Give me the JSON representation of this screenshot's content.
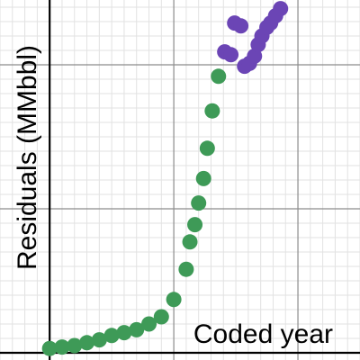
{
  "chart_data": {
    "type": "scatter",
    "title": "",
    "xlabel": "Coded year",
    "ylabel": "Residuals (MMbbl)",
    "grid": true,
    "legend": "none",
    "xlim": [
      -0.4,
      2.5
    ],
    "ylim": [
      -0.05,
      2.45
    ],
    "series": [
      {
        "color": "#3e9a57",
        "points": [
          {
            "x": 0.0,
            "y": 0.03
          },
          {
            "x": 0.1,
            "y": 0.04
          },
          {
            "x": 0.2,
            "y": 0.05
          },
          {
            "x": 0.3,
            "y": 0.07
          },
          {
            "x": 0.4,
            "y": 0.09
          },
          {
            "x": 0.5,
            "y": 0.12
          },
          {
            "x": 0.6,
            "y": 0.14
          },
          {
            "x": 0.7,
            "y": 0.16
          },
          {
            "x": 0.8,
            "y": 0.2
          },
          {
            "x": 0.9,
            "y": 0.25
          },
          {
            "x": 1.0,
            "y": 0.37
          },
          {
            "x": 1.1,
            "y": 0.58
          },
          {
            "x": 1.13,
            "y": 0.77
          },
          {
            "x": 1.17,
            "y": 0.89
          },
          {
            "x": 1.2,
            "y": 1.04
          },
          {
            "x": 1.24,
            "y": 1.21
          },
          {
            "x": 1.27,
            "y": 1.42
          },
          {
            "x": 1.31,
            "y": 1.68
          },
          {
            "x": 1.36,
            "y": 1.92
          }
        ]
      },
      {
        "color": "#6b45b5",
        "points": [
          {
            "x": 1.41,
            "y": 2.09
          },
          {
            "x": 1.46,
            "y": 2.07
          },
          {
            "x": 1.49,
            "y": 2.29
          },
          {
            "x": 1.54,
            "y": 2.27
          },
          {
            "x": 1.57,
            "y": 1.99
          },
          {
            "x": 1.61,
            "y": 2.01
          },
          {
            "x": 1.65,
            "y": 2.06
          },
          {
            "x": 1.68,
            "y": 2.14
          },
          {
            "x": 1.71,
            "y": 2.2
          },
          {
            "x": 1.75,
            "y": 2.26
          },
          {
            "x": 1.78,
            "y": 2.29
          },
          {
            "x": 1.82,
            "y": 2.34
          },
          {
            "x": 1.86,
            "y": 2.39
          }
        ]
      }
    ]
  }
}
